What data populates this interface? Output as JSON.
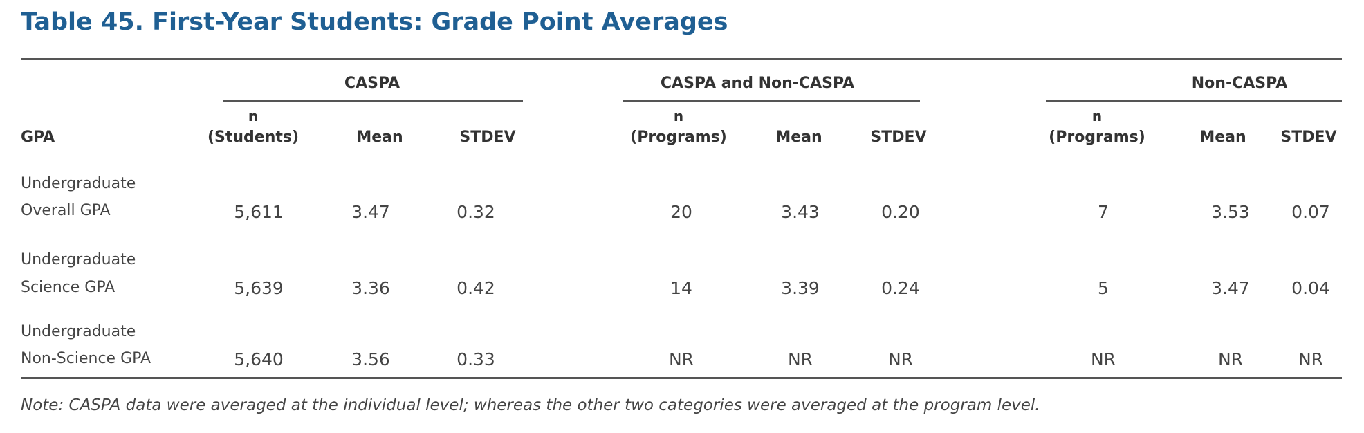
{
  "title": "Table 45. First-Year Students: Grade Point Averages",
  "groups": {
    "caspa": "CASPA",
    "both": "CASPA and Non-CASPA",
    "non": "Non-CASPA"
  },
  "headers": {
    "gpa": "GPA",
    "n_label": "n",
    "students": "(Students)",
    "programs": "(Programs)",
    "mean": "Mean",
    "stdev": "STDEV"
  },
  "rows": [
    {
      "label_line1": "Undergraduate",
      "label_line2": "Overall GPA",
      "caspa_n": "5,611",
      "caspa_mean": "3.47",
      "caspa_stdev": "0.32",
      "both_n": "20",
      "both_mean": "3.43",
      "both_stdev": "0.20",
      "non_n": "7",
      "non_mean": "3.53",
      "non_stdev": "0.07"
    },
    {
      "label_line1": "Undergraduate",
      "label_line2": "Science GPA",
      "caspa_n": "5,639",
      "caspa_mean": "3.36",
      "caspa_stdev": "0.42",
      "both_n": "14",
      "both_mean": "3.39",
      "both_stdev": "0.24",
      "non_n": "5",
      "non_mean": "3.47",
      "non_stdev": "0.04"
    },
    {
      "label_line1": "Undergraduate",
      "label_line2": "Non-Science GPA",
      "caspa_n": "5,640",
      "caspa_mean": "3.56",
      "caspa_stdev": "0.33",
      "both_n": "NR",
      "both_mean": "NR",
      "both_stdev": "NR",
      "non_n": "NR",
      "non_mean": "NR",
      "non_stdev": "NR"
    }
  ],
  "note": "Note: CASPA data were averaged at the individual level; whereas the other two categories were averaged at the program level.",
  "colors": {
    "title": "#1f5f93",
    "rule": "#555555"
  }
}
